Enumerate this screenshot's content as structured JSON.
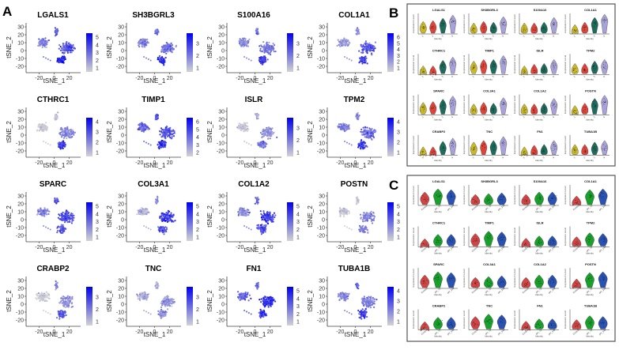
{
  "chart_data": [
    {
      "panel": "A",
      "type": "scatter",
      "xlabel": "tSNE_1",
      "ylabel": "tSNE_2",
      "x_ticks": [
        "-20",
        "0",
        "20"
      ],
      "y_ticks": [
        "30",
        "20",
        "10",
        "0",
        "-10",
        "-20"
      ],
      "color_low": "#d3d3d3",
      "color_high": "#0000ee",
      "plots": [
        {
          "title": "LGALS1",
          "colorbar_ticks": [
            "1",
            "2",
            "3",
            "4",
            "5"
          ]
        },
        {
          "title": "SH3BGRL3",
          "colorbar_ticks": [
            "1",
            "2",
            "3"
          ]
        },
        {
          "title": "S100A16",
          "colorbar_ticks": [
            "1",
            "2",
            "3"
          ]
        },
        {
          "title": "COL1A1",
          "colorbar_ticks": [
            "1",
            "2",
            "3",
            "4",
            "5",
            "6"
          ]
        },
        {
          "title": "CTHRC1",
          "colorbar_ticks": [
            "1",
            "2",
            "3",
            "4"
          ]
        },
        {
          "title": "TIMP1",
          "colorbar_ticks": [
            "2",
            "3",
            "4",
            "5",
            "6"
          ]
        },
        {
          "title": "ISLR",
          "colorbar_ticks": [
            "1",
            "2",
            "3"
          ]
        },
        {
          "title": "TPM2",
          "colorbar_ticks": [
            "1",
            "2",
            "3",
            "4"
          ]
        },
        {
          "title": "SPARC",
          "colorbar_ticks": [
            "1",
            "2",
            "3",
            "4",
            "5"
          ]
        },
        {
          "title": "COL3A1",
          "colorbar_ticks": [
            "1",
            "2",
            "3",
            "4",
            "5"
          ]
        },
        {
          "title": "COL1A2",
          "colorbar_ticks": [
            "1",
            "2",
            "3",
            "4",
            "5"
          ]
        },
        {
          "title": "POSTN",
          "colorbar_ticks": [
            "1",
            "2",
            "3",
            "4",
            "5"
          ]
        },
        {
          "title": "CRABP2",
          "colorbar_ticks": [
            "1",
            "2",
            "3"
          ]
        },
        {
          "title": "TNC",
          "colorbar_ticks": [
            "1",
            "2",
            "3"
          ]
        },
        {
          "title": "FN1",
          "colorbar_ticks": [
            "1",
            "2",
            "3",
            "4",
            "5"
          ]
        },
        {
          "title": "TUBA1B",
          "colorbar_ticks": [
            "1",
            "2",
            "3",
            "4"
          ]
        }
      ]
    },
    {
      "panel": "B",
      "type": "violin",
      "xlabel": "Identity",
      "ylabel": "Expression Level",
      "identities": [
        "1",
        "2",
        "3",
        "4"
      ],
      "colors": [
        "#c9b82a",
        "#e0453c",
        "#1f6b5c",
        "#a9a2d9"
      ],
      "genes": [
        "LGALS1",
        "SH3BGRL3",
        "S100A16",
        "COL1A1",
        "CTHRC1",
        "TIMP1",
        "ISLR",
        "TPM2",
        "SPARC",
        "COL3A1",
        "COL1A2",
        "POSTN",
        "CRABP2",
        "TNC",
        "FN1",
        "TUBA1B"
      ]
    },
    {
      "panel": "C",
      "type": "violin",
      "xlabel": "Identity",
      "ylabel": "Expression Level",
      "identities": [
        "Control",
        "pH_7d",
        "pH_14d"
      ],
      "colors": [
        "#d04545",
        "#1aa02c",
        "#2a52b2"
      ],
      "genes": [
        "LGALS1",
        "SH3BGRL3",
        "S100A16",
        "COL1A1",
        "CTHRC1",
        "TIMP1",
        "ISLR",
        "TPM2",
        "SPARC",
        "COL3A1",
        "COL1A2",
        "POSTN",
        "CRABP2",
        "TNC",
        "FN1",
        "TUBA1B"
      ]
    }
  ]
}
